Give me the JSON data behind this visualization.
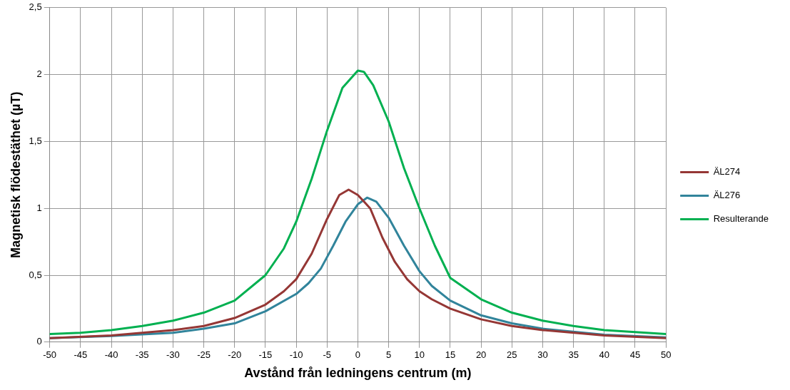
{
  "chart_data": {
    "type": "line",
    "xlabel": "Avstånd från ledningens centrum (m)",
    "ylabel": "Magnetisk flödestäthet (µT)",
    "xlim": [
      -50,
      50
    ],
    "xticks": [
      -50,
      -45,
      -40,
      -35,
      -30,
      -25,
      -20,
      -15,
      -10,
      -5,
      0,
      5,
      10,
      15,
      20,
      25,
      30,
      35,
      40,
      45,
      50
    ],
    "ylim": [
      0,
      2.5
    ],
    "yticks": [
      0,
      {
        "value": 0.5,
        "label": "0,5"
      },
      1,
      {
        "value": 1.5,
        "label": "1,5"
      },
      2,
      {
        "value": 2.5,
        "label": "2,5"
      }
    ],
    "grid": true,
    "legend": "right",
    "marker": "none",
    "line_style": "solid",
    "series": [
      {
        "name": "ÄL274",
        "color": "#953735",
        "x": [
          -50,
          -40,
          -30,
          -25,
          -20,
          -15,
          -12,
          -10,
          -7.5,
          -5,
          -3,
          -1.5,
          0,
          2,
          4,
          6,
          8,
          10,
          12,
          15,
          20,
          25,
          30,
          40,
          50
        ],
        "values": [
          0.03,
          0.05,
          0.09,
          0.12,
          0.18,
          0.28,
          0.38,
          0.47,
          0.66,
          0.92,
          1.1,
          1.14,
          1.1,
          1.0,
          0.78,
          0.6,
          0.47,
          0.38,
          0.32,
          0.25,
          0.17,
          0.12,
          0.09,
          0.05,
          0.03
        ]
      },
      {
        "name": "ÄL276",
        "color": "#31849b",
        "x": [
          -50,
          -40,
          -30,
          -25,
          -20,
          -15,
          -10,
          -8,
          -6,
          -4,
          -2,
          0,
          1.5,
          3,
          5,
          7.5,
          10,
          12,
          15,
          20,
          25,
          30,
          40,
          50
        ],
        "values": [
          0.03,
          0.045,
          0.07,
          0.1,
          0.14,
          0.23,
          0.36,
          0.44,
          0.55,
          0.72,
          0.9,
          1.03,
          1.08,
          1.05,
          0.93,
          0.72,
          0.53,
          0.42,
          0.31,
          0.2,
          0.14,
          0.1,
          0.055,
          0.035
        ]
      },
      {
        "name": "Resulterande",
        "color": "#00b050",
        "x": [
          -50,
          -45,
          -40,
          -35,
          -30,
          -25,
          -20,
          -15,
          -12,
          -10,
          -7.5,
          -5,
          -2.5,
          0,
          1,
          2.5,
          5,
          7.5,
          10,
          12.5,
          15,
          20,
          25,
          30,
          35,
          40,
          45,
          50
        ],
        "values": [
          0.06,
          0.07,
          0.09,
          0.12,
          0.16,
          0.22,
          0.31,
          0.5,
          0.7,
          0.9,
          1.22,
          1.58,
          1.9,
          2.03,
          2.02,
          1.92,
          1.65,
          1.3,
          1.0,
          0.72,
          0.48,
          0.32,
          0.22,
          0.16,
          0.12,
          0.09,
          0.075,
          0.06
        ]
      }
    ]
  }
}
